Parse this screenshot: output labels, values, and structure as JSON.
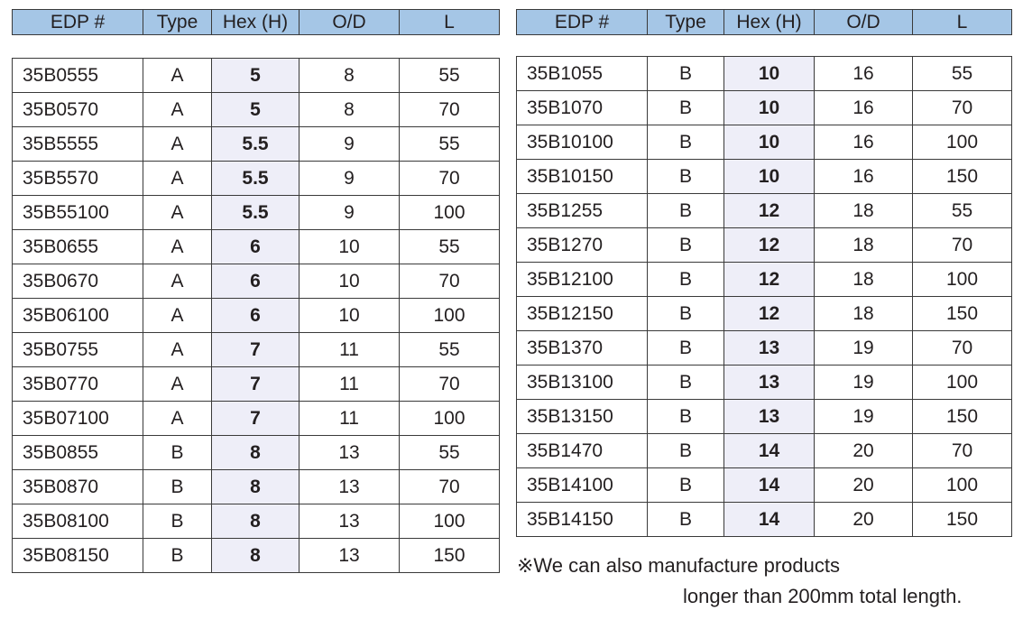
{
  "columns": [
    "EDP #",
    "Type",
    "Hex (H)",
    "O/D",
    "L"
  ],
  "left_rows": [
    [
      "35B0555",
      "A",
      "5",
      "8",
      "55"
    ],
    [
      "35B0570",
      "A",
      "5",
      "8",
      "70"
    ],
    [
      "35B5555",
      "A",
      "5.5",
      "9",
      "55"
    ],
    [
      "35B5570",
      "A",
      "5.5",
      "9",
      "70"
    ],
    [
      "35B55100",
      "A",
      "5.5",
      "9",
      "100"
    ],
    [
      "35B0655",
      "A",
      "6",
      "10",
      "55"
    ],
    [
      "35B0670",
      "A",
      "6",
      "10",
      "70"
    ],
    [
      "35B06100",
      "A",
      "6",
      "10",
      "100"
    ],
    [
      "35B0755",
      "A",
      "7",
      "11",
      "55"
    ],
    [
      "35B0770",
      "A",
      "7",
      "11",
      "70"
    ],
    [
      "35B07100",
      "A",
      "7",
      "11",
      "100"
    ],
    [
      "35B0855",
      "B",
      "8",
      "13",
      "55"
    ],
    [
      "35B0870",
      "B",
      "8",
      "13",
      "70"
    ],
    [
      "35B08100",
      "B",
      "8",
      "13",
      "100"
    ],
    [
      "35B08150",
      "B",
      "8",
      "13",
      "150"
    ]
  ],
  "right_rows": [
    [
      "35B1055",
      "B",
      "10",
      "16",
      "55"
    ],
    [
      "35B1070",
      "B",
      "10",
      "16",
      "70"
    ],
    [
      "35B10100",
      "B",
      "10",
      "16",
      "100"
    ],
    [
      "35B10150",
      "B",
      "10",
      "16",
      "150"
    ],
    [
      "35B1255",
      "B",
      "12",
      "18",
      "55"
    ],
    [
      "35B1270",
      "B",
      "12",
      "18",
      "70"
    ],
    [
      "35B12100",
      "B",
      "12",
      "18",
      "100"
    ],
    [
      "35B12150",
      "B",
      "12",
      "18",
      "150"
    ],
    [
      "35B1370",
      "B",
      "13",
      "19",
      "70"
    ],
    [
      "35B13100",
      "B",
      "13",
      "19",
      "100"
    ],
    [
      "35B13150",
      "B",
      "13",
      "19",
      "150"
    ],
    [
      "35B1470",
      "B",
      "14",
      "20",
      "70"
    ],
    [
      "35B14100",
      "B",
      "14",
      "20",
      "100"
    ],
    [
      "35B14150",
      "B",
      "14",
      "20",
      "150"
    ]
  ],
  "note": {
    "line1": "※We can also manufacture products",
    "line2": "longer than 200mm total length."
  },
  "colors": {
    "header_bg": "#a5c6e6",
    "hex_col_bg": "#eeeef8",
    "border": "#3a3a3a"
  }
}
